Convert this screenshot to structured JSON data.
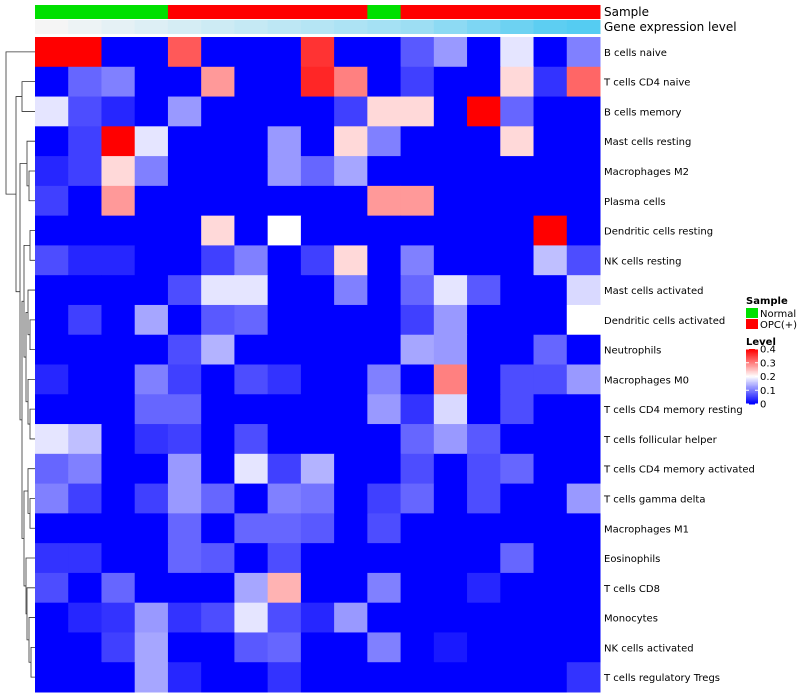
{
  "chart_data": {
    "type": "heatmap",
    "title": "",
    "annotations": {
      "sample_label": "Sample",
      "gene_expression_label": "Gene expression level",
      "sample_groups": [
        "Normal",
        "Normal",
        "Normal",
        "Normal",
        "OPC(+)",
        "OPC(+)",
        "OPC(+)",
        "OPC(+)",
        "OPC(+)",
        "OPC(+)",
        "Normal",
        "OPC(+)",
        "OPC(+)",
        "OPC(+)",
        "OPC(+)",
        "OPC(+)",
        "OPC(+)"
      ],
      "gene_expression_values": [
        0.0,
        0.05,
        0.1,
        0.15,
        0.2,
        0.25,
        0.3,
        0.35,
        0.4,
        0.45,
        0.5,
        0.55,
        0.65,
        0.75,
        0.85,
        0.95,
        1.0
      ]
    },
    "rows": [
      "B cells naive",
      "T cells CD4 naive",
      "B cells memory",
      "Mast cells resting",
      "Macrophages M2",
      "Plasma cells",
      "Dendritic cells resting",
      "NK cells resting",
      "Mast cells activated",
      "Dendritic cells activated",
      "Neutrophils",
      "Macrophages M0",
      "T cells CD4 memory resting",
      "T cells follicular helper",
      "T cells CD4 memory activated",
      "T cells gamma delta",
      "Macrophages M1",
      "Eosinophils",
      "T cells CD8",
      "Monocytes",
      "NK cells activated",
      "T cells regulatory  Tregs"
    ],
    "matrix": [
      [
        0.4,
        0.4,
        0.0,
        0.0,
        0.33,
        0.0,
        0.0,
        0.0,
        0.36,
        0.0,
        0.0,
        0.07,
        0.12,
        0.0,
        0.18,
        0.0,
        0.1
      ],
      [
        0.0,
        0.08,
        0.1,
        0.0,
        0.0,
        0.28,
        0.0,
        0.0,
        0.37,
        0.3,
        0.0,
        0.05,
        0.0,
        0.0,
        0.23,
        0.04,
        0.32
      ],
      [
        0.18,
        0.06,
        0.03,
        0.0,
        0.12,
        0.0,
        0.0,
        0.0,
        0.0,
        0.05,
        0.23,
        0.23,
        0.0,
        0.4,
        0.08,
        0.0,
        0.0
      ],
      [
        0.0,
        0.05,
        0.4,
        0.18,
        0.0,
        0.0,
        0.0,
        0.12,
        0.0,
        0.23,
        0.1,
        0.0,
        0.0,
        0.0,
        0.23,
        0.0,
        0.0
      ],
      [
        0.03,
        0.05,
        0.23,
        0.1,
        0.0,
        0.0,
        0.0,
        0.12,
        0.08,
        0.13,
        0.0,
        0.0,
        0.0,
        0.0,
        0.0,
        0.0,
        0.0
      ],
      [
        0.05,
        0.0,
        0.28,
        0.0,
        0.0,
        0.0,
        0.0,
        0.0,
        0.0,
        0.0,
        0.28,
        0.28,
        0.0,
        0.0,
        0.0,
        0.0,
        0.0
      ],
      [
        0.0,
        0.0,
        0.0,
        0.0,
        0.0,
        0.23,
        0.0,
        0.2,
        0.0,
        0.0,
        0.0,
        0.0,
        0.0,
        0.0,
        0.0,
        0.4,
        0.0
      ],
      [
        0.06,
        0.03,
        0.03,
        0.0,
        0.0,
        0.05,
        0.1,
        0.0,
        0.05,
        0.23,
        0.0,
        0.1,
        0.0,
        0.0,
        0.0,
        0.15,
        0.06
      ],
      [
        0.0,
        0.0,
        0.0,
        0.0,
        0.06,
        0.18,
        0.18,
        0.0,
        0.0,
        0.1,
        0.0,
        0.08,
        0.18,
        0.07,
        0.0,
        0.0,
        0.17
      ],
      [
        0.0,
        0.05,
        0.0,
        0.13,
        0.0,
        0.07,
        0.08,
        0.0,
        0.0,
        0.0,
        0.0,
        0.05,
        0.12,
        0.0,
        0.0,
        0.0,
        0.2
      ],
      [
        0.0,
        0.0,
        0.0,
        0.0,
        0.06,
        0.14,
        0.0,
        0.0,
        0.0,
        0.0,
        0.0,
        0.13,
        0.12,
        0.0,
        0.0,
        0.08,
        0.0
      ],
      [
        0.03,
        0.0,
        0.0,
        0.1,
        0.05,
        0.0,
        0.06,
        0.04,
        0.0,
        0.0,
        0.1,
        0.0,
        0.3,
        0.0,
        0.06,
        0.06,
        0.12
      ],
      [
        0.0,
        0.0,
        0.0,
        0.08,
        0.08,
        0.0,
        0.0,
        0.0,
        0.0,
        0.0,
        0.12,
        0.04,
        0.17,
        0.0,
        0.06,
        0.0,
        0.0
      ],
      [
        0.18,
        0.15,
        0.0,
        0.04,
        0.05,
        0.0,
        0.06,
        0.0,
        0.0,
        0.0,
        0.0,
        0.08,
        0.12,
        0.07,
        0.0,
        0.0,
        0.0
      ],
      [
        0.08,
        0.1,
        0.0,
        0.0,
        0.12,
        0.0,
        0.18,
        0.05,
        0.14,
        0.0,
        0.0,
        0.06,
        0.0,
        0.06,
        0.08,
        0.0,
        0.0
      ],
      [
        0.1,
        0.05,
        0.0,
        0.05,
        0.12,
        0.08,
        0.0,
        0.1,
        0.09,
        0.0,
        0.05,
        0.08,
        0.0,
        0.06,
        0.0,
        0.0,
        0.12
      ],
      [
        0.0,
        0.0,
        0.0,
        0.0,
        0.08,
        0.0,
        0.08,
        0.08,
        0.07,
        0.0,
        0.06,
        0.0,
        0.0,
        0.0,
        0.0,
        0.0,
        0.0
      ],
      [
        0.04,
        0.04,
        0.0,
        0.0,
        0.08,
        0.07,
        0.0,
        0.06,
        0.0,
        0.0,
        0.0,
        0.0,
        0.0,
        0.0,
        0.08,
        0.0,
        0.0
      ],
      [
        0.06,
        0.0,
        0.08,
        0.0,
        0.0,
        0.0,
        0.13,
        0.26,
        0.0,
        0.0,
        0.1,
        0.0,
        0.0,
        0.03,
        0.0,
        0.0,
        0.0
      ],
      [
        0.0,
        0.03,
        0.04,
        0.12,
        0.04,
        0.06,
        0.18,
        0.06,
        0.03,
        0.12,
        0.0,
        0.0,
        0.0,
        0.0,
        0.0,
        0.0,
        0.0
      ],
      [
        0.0,
        0.0,
        0.05,
        0.13,
        0.0,
        0.0,
        0.07,
        0.08,
        0.0,
        0.0,
        0.1,
        0.0,
        0.02,
        0.0,
        0.0,
        0.0,
        0.0
      ],
      [
        0.0,
        0.0,
        0.0,
        0.13,
        0.03,
        0.0,
        0.0,
        0.04,
        0.0,
        0.0,
        0.0,
        0.0,
        0.0,
        0.0,
        0.0,
        0.0,
        0.04
      ]
    ],
    "legend": {
      "sample_title": "Sample",
      "sample_entries": [
        {
          "label": "Normal",
          "color": "#00e000"
        },
        {
          "label": "OPC(+)",
          "color": "#ff0000"
        }
      ],
      "level_title": "Level",
      "level_ticks": [
        "0.4",
        "0.3",
        "0.2",
        "0.1",
        "0"
      ],
      "level_tick_values": [
        0.4,
        0.3,
        0.2,
        0.1,
        0
      ],
      "range": [
        0,
        0.4
      ]
    },
    "colors": {
      "low": "#0000ff",
      "mid": "#ffffff",
      "high": "#ff0000",
      "expr_low": "#f5f5f5",
      "expr_high": "#55ccf2"
    }
  }
}
